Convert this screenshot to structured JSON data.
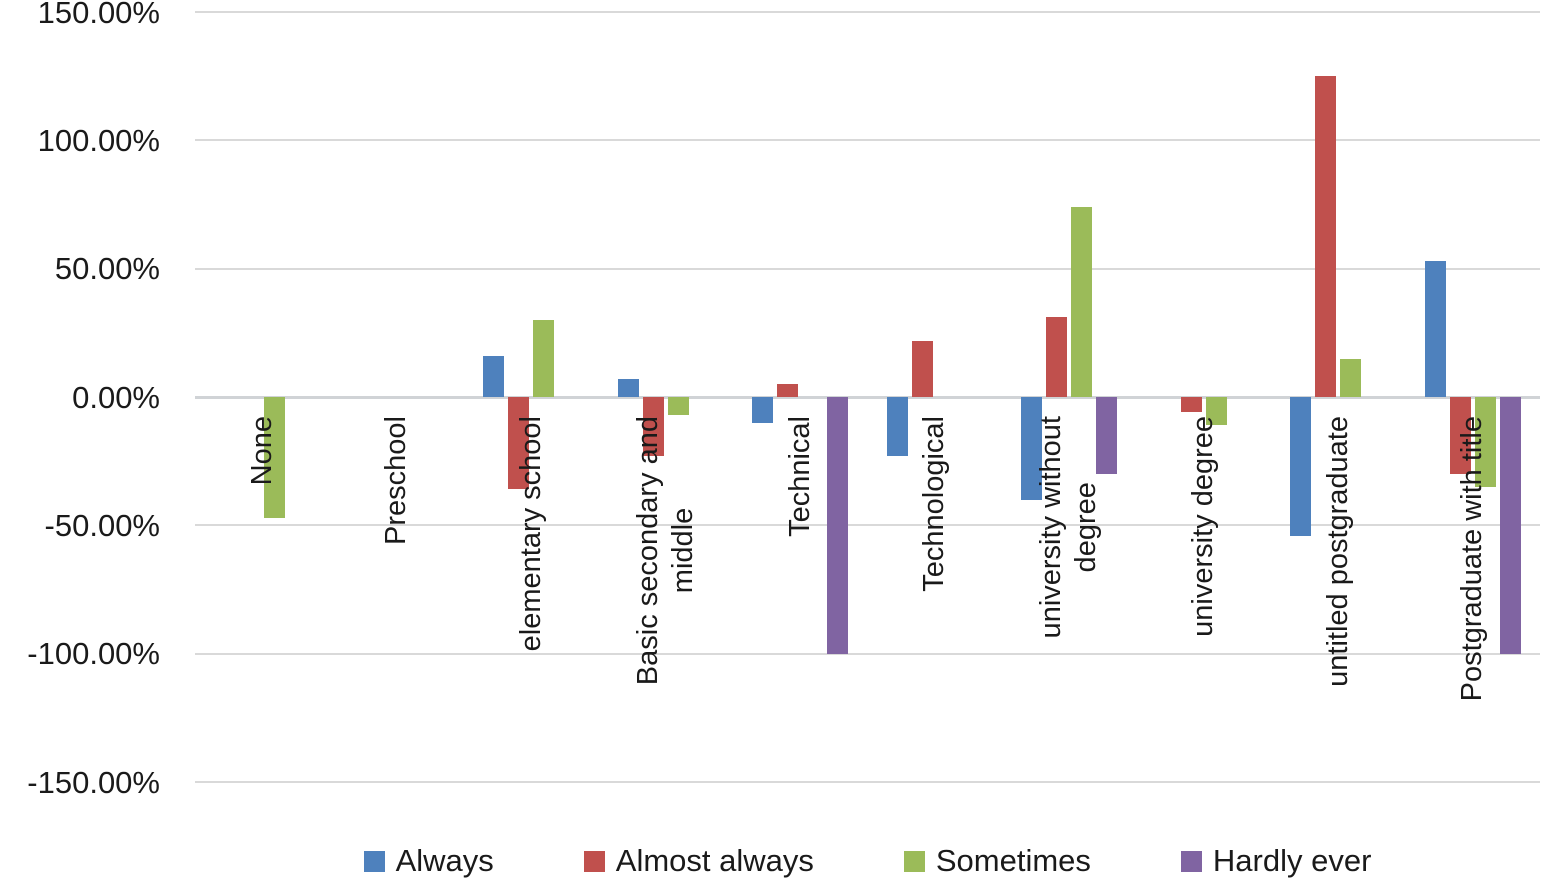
{
  "chart_data": {
    "type": "bar",
    "title": "",
    "xlabel": "",
    "ylabel": "",
    "ylim": [
      -150,
      150
    ],
    "grid": true,
    "legend_position": "bottom",
    "y_ticks": [
      {
        "label": "150.00%",
        "value": 150
      },
      {
        "label": "100.00%",
        "value": 100
      },
      {
        "label": "50.00%",
        "value": 50
      },
      {
        "label": "0.00%",
        "value": 0
      },
      {
        "label": "-50.00%",
        "value": -50
      },
      {
        "label": "-100.00%",
        "value": -100
      },
      {
        "label": "-150.00%",
        "value": -150
      }
    ],
    "categories": [
      "None",
      "Preschool",
      "elementary school",
      "Basic secondary and middle",
      "Technical",
      "Technological",
      "university without degree",
      "university degree",
      "untitled postgraduate",
      "Postgraduate with title"
    ],
    "category_label_lines": [
      [
        "None"
      ],
      [
        "Preschool"
      ],
      [
        "elementary school"
      ],
      [
        "Basic secondary and",
        "middle"
      ],
      [
        "Technical"
      ],
      [
        "Technological"
      ],
      [
        "university without",
        "degree"
      ],
      [
        "university degree"
      ],
      [
        "untitled postgraduate"
      ],
      [
        "Postgraduate with title"
      ]
    ],
    "series": [
      {
        "name": "Always",
        "color": "#4E81BD",
        "values": [
          0,
          0,
          16,
          7,
          -10,
          -23,
          -40,
          0,
          -54,
          53
        ]
      },
      {
        "name": "Almost always",
        "color": "#C0504D",
        "values": [
          0,
          0,
          -36,
          -23,
          5,
          22,
          31,
          -6,
          125,
          -30
        ]
      },
      {
        "name": "Sometimes",
        "color": "#9BBB59",
        "values": [
          -47,
          0,
          30,
          -7,
          0,
          0,
          74,
          -11,
          15,
          -35
        ]
      },
      {
        "name": "Hardly ever",
        "color": "#8064A2",
        "values": [
          0,
          0,
          0,
          0,
          -100,
          0,
          -30,
          0,
          0,
          -100
        ]
      }
    ]
  }
}
